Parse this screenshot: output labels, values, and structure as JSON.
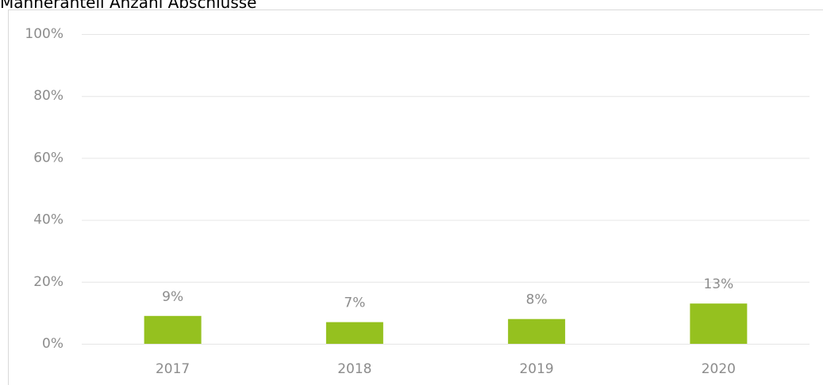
{
  "chart_data": {
    "type": "bar",
    "title": "Männeranteil Anzahl Abschlüsse",
    "categories": [
      "2017",
      "2018",
      "2019",
      "2020"
    ],
    "values": [
      9,
      7,
      8,
      13
    ],
    "value_labels": [
      "9%",
      "7%",
      "8%",
      "13%"
    ],
    "color": "#95c11f",
    "ylim": [
      0,
      100
    ],
    "yticks": [
      {
        "value": 0,
        "label": "0%"
      },
      {
        "value": 20,
        "label": "20%"
      },
      {
        "value": 40,
        "label": "40%"
      },
      {
        "value": 60,
        "label": "60%"
      },
      {
        "value": 80,
        "label": "80%"
      },
      {
        "value": 100,
        "label": "100%"
      }
    ],
    "grid": true
  }
}
